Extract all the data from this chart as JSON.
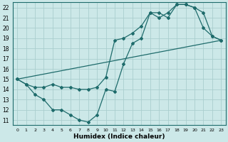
{
  "xlabel": "Humidex (Indice chaleur)",
  "bg_color": "#cce8e8",
  "grid_color": "#aacece",
  "line_color": "#1e6b6b",
  "xlim": [
    -0.5,
    23.5
  ],
  "ylim": [
    10.5,
    22.5
  ],
  "xticks": [
    0,
    1,
    2,
    3,
    4,
    5,
    6,
    7,
    8,
    9,
    10,
    11,
    12,
    13,
    14,
    15,
    16,
    17,
    18,
    19,
    20,
    21,
    22,
    23
  ],
  "yticks": [
    11,
    12,
    13,
    14,
    15,
    16,
    17,
    18,
    19,
    20,
    21,
    22
  ],
  "line1_x": [
    0,
    1,
    2,
    3,
    4,
    5,
    6,
    7,
    8,
    9,
    10,
    11,
    12,
    13,
    14,
    15,
    16,
    17,
    18,
    19,
    20,
    21,
    22,
    23
  ],
  "line1_y": [
    15.0,
    14.5,
    13.5,
    13.0,
    12.0,
    12.0,
    11.5,
    11.0,
    10.8,
    11.5,
    14.0,
    13.8,
    16.5,
    18.5,
    19.0,
    21.5,
    21.5,
    21.0,
    22.3,
    22.3,
    22.0,
    20.0,
    19.2,
    18.8
  ],
  "line2_x": [
    0,
    1,
    2,
    3,
    4,
    5,
    6,
    7,
    8,
    9,
    10,
    11,
    12,
    13,
    14,
    15,
    16,
    17,
    18,
    19,
    20,
    21,
    22,
    23
  ],
  "line2_y": [
    15.0,
    14.5,
    14.2,
    14.2,
    14.5,
    14.2,
    14.2,
    14.0,
    14.0,
    14.2,
    15.2,
    18.8,
    19.0,
    19.5,
    20.2,
    21.5,
    21.0,
    21.5,
    22.3,
    22.3,
    22.0,
    21.5,
    19.2,
    18.8
  ],
  "line3_x": [
    0,
    23
  ],
  "line3_y": [
    15.0,
    18.8
  ]
}
